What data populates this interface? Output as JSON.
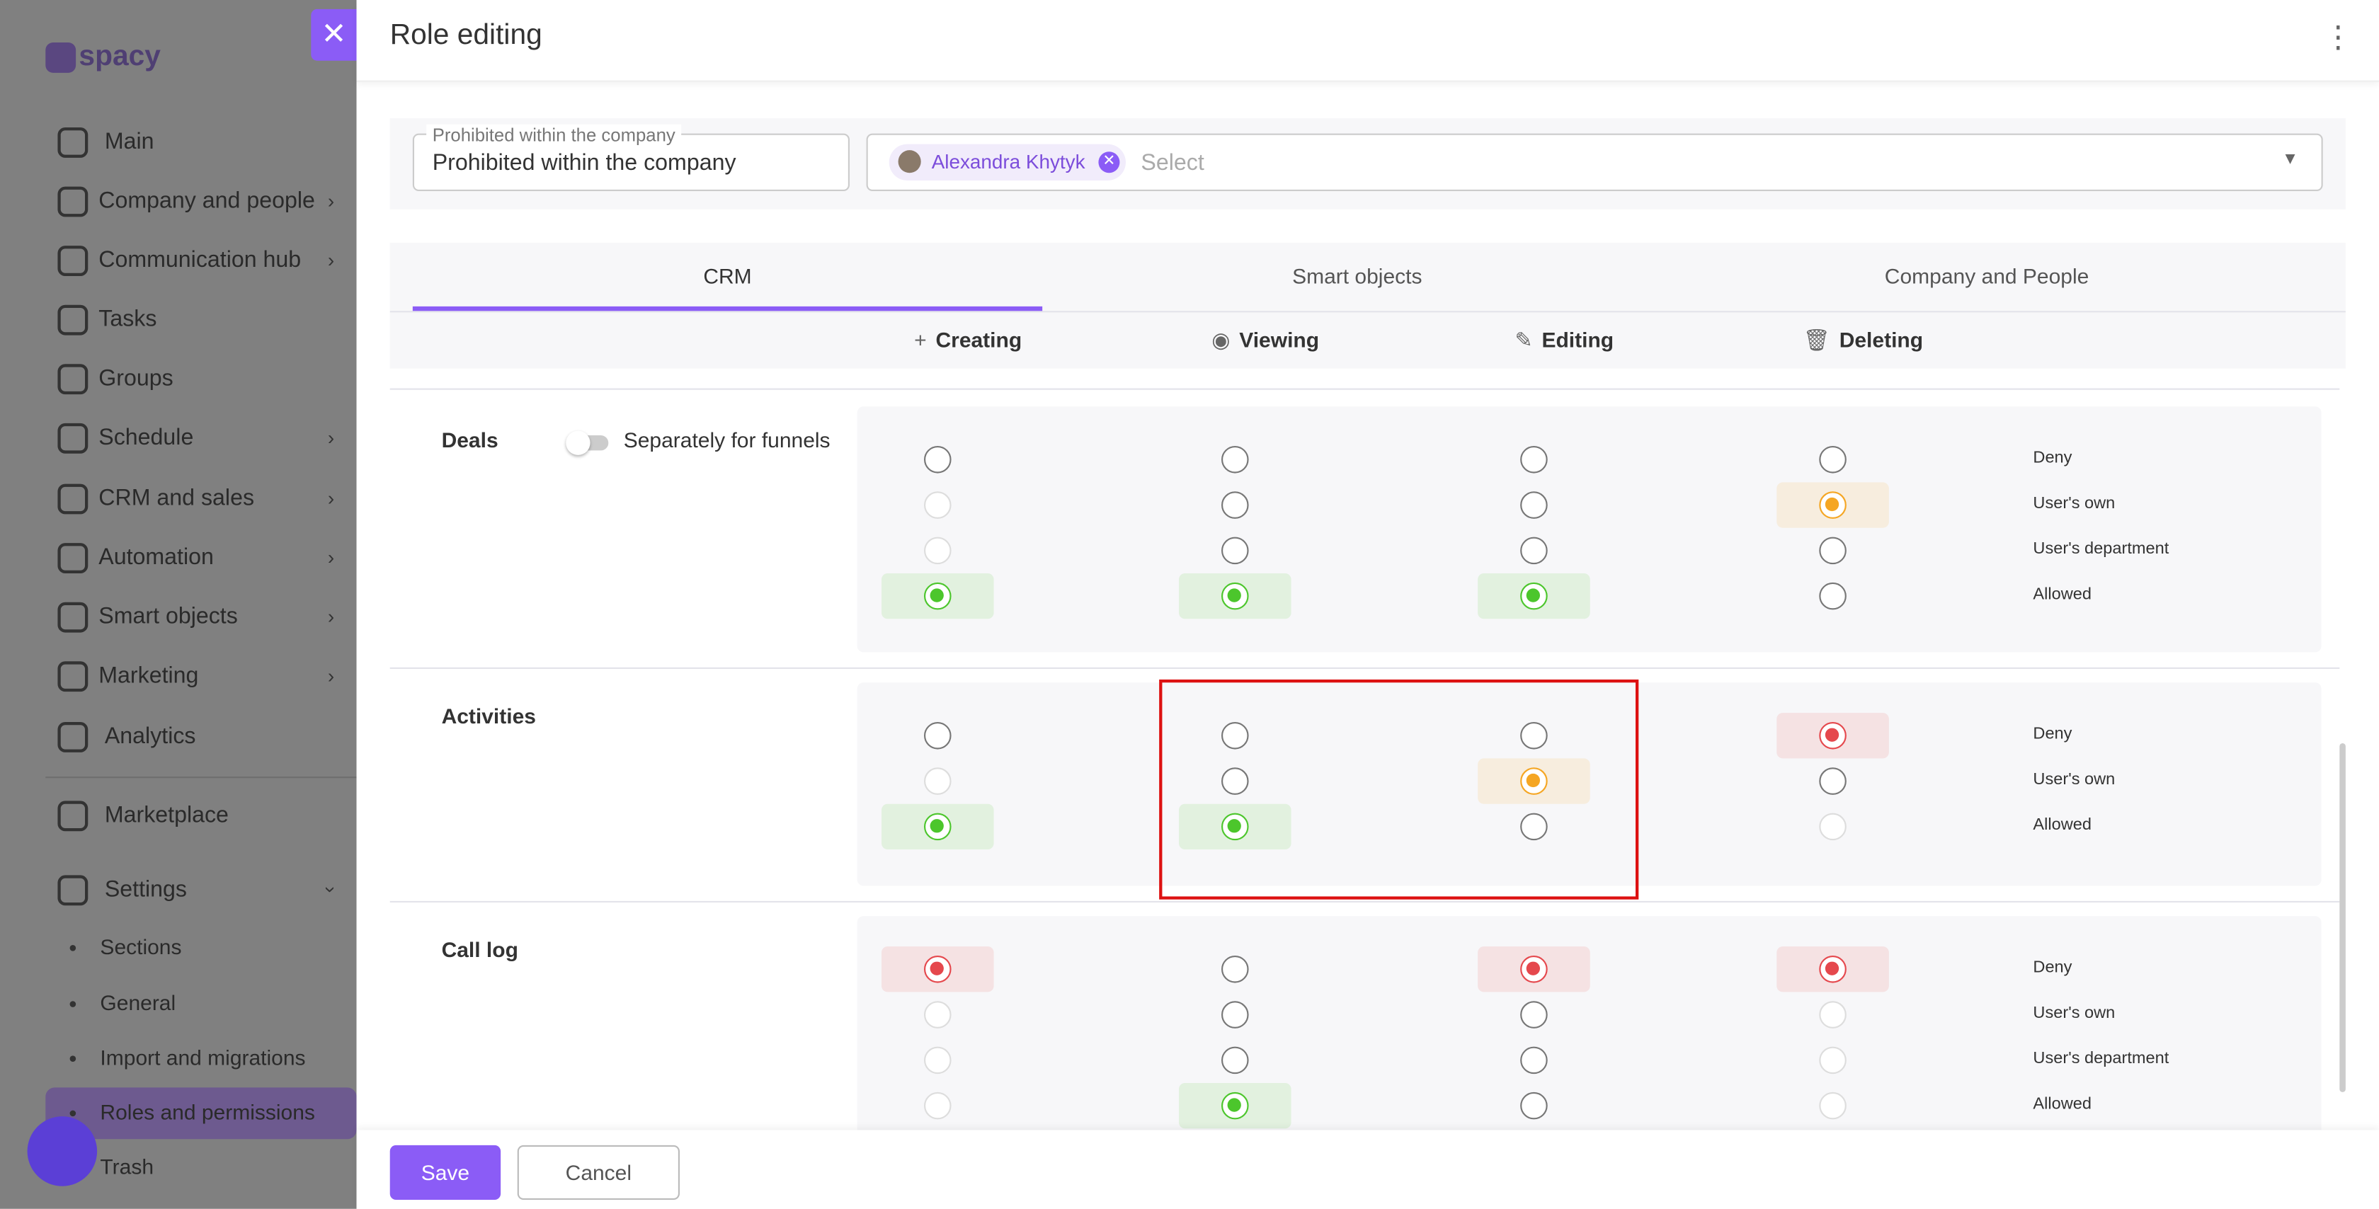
{
  "sidebar": {
    "logo": "spacy",
    "items": [
      {
        "label": "Main"
      },
      {
        "label": "Company and people",
        "arrow": "right"
      },
      {
        "label": "Communication hub",
        "arrow": "right"
      },
      {
        "label": "Tasks"
      },
      {
        "label": "Groups"
      },
      {
        "label": "Schedule",
        "arrow": "right"
      },
      {
        "label": "CRM and sales",
        "arrow": "right"
      },
      {
        "label": "Automation",
        "arrow": "right"
      },
      {
        "label": "Smart objects",
        "arrow": "right"
      },
      {
        "label": "Marketing",
        "arrow": "right"
      },
      {
        "label": "Analytics"
      },
      {
        "label": "Marketplace"
      },
      {
        "label": "Settings",
        "arrow": "down"
      }
    ],
    "subitems": [
      {
        "label": "Sections"
      },
      {
        "label": "General"
      },
      {
        "label": "Import and migrations"
      },
      {
        "label": "Roles and permissions",
        "active": true
      },
      {
        "label": "Trash"
      }
    ]
  },
  "modal": {
    "title": "Role editing",
    "scope_label": "Prohibited within the company",
    "scope_value": "Prohibited within the company",
    "selected_user": "Alexandra Khytyk",
    "select_placeholder": "Select",
    "tabs": [
      "CRM",
      "Smart objects",
      "Company and People"
    ],
    "active_tab": 0,
    "actions": [
      "Creating",
      "Viewing",
      "Editing",
      "Deleting"
    ],
    "sections": [
      {
        "name": "Deals",
        "toggle_label": "Separately for funnels",
        "levels": [
          {
            "label": "Deny",
            "color": "#e5484d",
            "cells": [
              "off",
              "off",
              "off",
              "off"
            ]
          },
          {
            "label": "User's own",
            "color": "#f5a623",
            "cells": [
              "disabled",
              "off",
              "off",
              "on"
            ]
          },
          {
            "label": "User's department",
            "color": "#4cc62c",
            "cells": [
              "disabled",
              "off",
              "off",
              "off"
            ]
          },
          {
            "label": "Allowed",
            "color": "#4cc62c",
            "cells": [
              "on",
              "on",
              "on",
              "off"
            ]
          }
        ]
      },
      {
        "name": "Activities",
        "levels": [
          {
            "label": "Deny",
            "color": "#e5484d",
            "cells": [
              "off",
              "off",
              "off",
              "on"
            ]
          },
          {
            "label": "User's own",
            "color": "#f5a623",
            "cells": [
              "disabled",
              "off",
              "on",
              "off"
            ]
          },
          {
            "label": "Allowed",
            "color": "#4cc62c",
            "cells": [
              "on",
              "on",
              "off",
              "disabled"
            ]
          }
        ]
      },
      {
        "name": "Call log",
        "levels": [
          {
            "label": "Deny",
            "color": "#e5484d",
            "cells": [
              "on",
              "off",
              "on",
              "on"
            ]
          },
          {
            "label": "User's own",
            "color": "#f5a623",
            "cells": [
              "disabled",
              "off",
              "off",
              "disabled"
            ]
          },
          {
            "label": "User's department",
            "color": "#4cc62c",
            "cells": [
              "disabled",
              "off",
              "off",
              "disabled"
            ]
          },
          {
            "label": "Allowed",
            "color": "#4cc62c",
            "cells": [
              "disabled",
              "on",
              "off",
              "disabled"
            ]
          }
        ]
      }
    ],
    "buttons": {
      "save": "Save",
      "cancel": "Cancel"
    }
  }
}
